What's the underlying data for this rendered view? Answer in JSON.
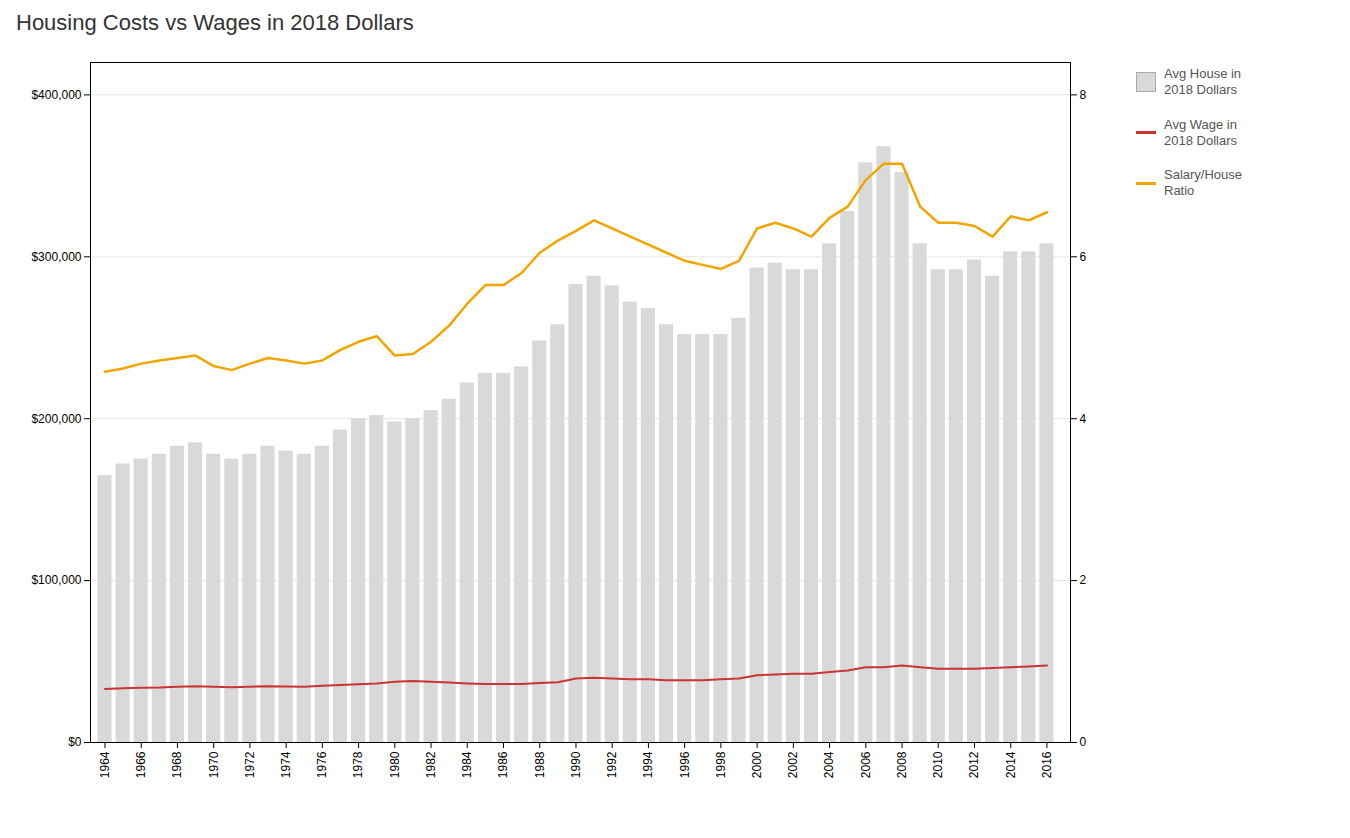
{
  "chart_data": {
    "type": "bar",
    "title": "Housing Costs vs Wages in 2018 Dollars",
    "x": [
      1964,
      1965,
      1966,
      1967,
      1968,
      1969,
      1970,
      1971,
      1972,
      1973,
      1974,
      1975,
      1976,
      1977,
      1978,
      1979,
      1980,
      1981,
      1982,
      1983,
      1984,
      1985,
      1986,
      1987,
      1988,
      1989,
      1990,
      1991,
      1992,
      1993,
      1994,
      1995,
      1996,
      1997,
      1998,
      1999,
      2000,
      2001,
      2002,
      2003,
      2004,
      2005,
      2006,
      2007,
      2008,
      2009,
      2010,
      2011,
      2012,
      2013,
      2014,
      2015,
      2016
    ],
    "series": [
      {
        "name": "Avg House in\n2018 Dollars",
        "type": "bar",
        "color": "#d9d9d9",
        "values": [
          165000,
          172000,
          175000,
          178000,
          183000,
          185000,
          178000,
          175000,
          178000,
          183000,
          180000,
          178000,
          183000,
          193000,
          200000,
          202000,
          198000,
          200000,
          205000,
          212000,
          222000,
          228000,
          228000,
          232000,
          248000,
          258000,
          283000,
          288000,
          282000,
          272000,
          268000,
          258000,
          252000,
          252000,
          252000,
          262000,
          293000,
          296000,
          292000,
          292000,
          308000,
          328000,
          358000,
          368000,
          352000,
          308000,
          292000,
          292000,
          298000,
          288000,
          303000,
          303000,
          308000
        ]
      },
      {
        "name": "Avg Wage in\n2018 Dollars",
        "type": "line",
        "color": "#cc3333",
        "values": [
          33000,
          33500,
          33800,
          34000,
          34500,
          34800,
          34500,
          34200,
          34500,
          34800,
          34600,
          34500,
          35000,
          35500,
          36000,
          36500,
          37500,
          38000,
          37500,
          37000,
          36500,
          36200,
          36200,
          36200,
          36800,
          37200,
          39500,
          40000,
          39500,
          39000,
          39000,
          38500,
          38500,
          38500,
          39000,
          39500,
          41500,
          42000,
          42500,
          42500,
          43500,
          44500,
          46500,
          46500,
          47500,
          46500,
          45500,
          45500,
          45500,
          46000,
          46500,
          47000,
          47500
        ]
      },
      {
        "name": "Salary/House\nRatio",
        "type": "line",
        "color": "#f0a500",
        "axis": "y2",
        "values": [
          4.58,
          4.62,
          4.68,
          4.72,
          4.75,
          4.78,
          4.65,
          4.6,
          4.68,
          4.75,
          4.72,
          4.68,
          4.72,
          4.85,
          4.95,
          5.02,
          4.78,
          4.8,
          4.95,
          5.15,
          5.42,
          5.65,
          5.65,
          5.8,
          6.05,
          6.2,
          6.32,
          6.45,
          6.35,
          6.25,
          6.15,
          6.05,
          5.95,
          5.9,
          5.85,
          5.95,
          6.35,
          6.42,
          6.35,
          6.25,
          6.48,
          6.62,
          6.95,
          7.15,
          7.15,
          6.62,
          6.42,
          6.42,
          6.38,
          6.25,
          6.5,
          6.45,
          6.55
        ]
      }
    ],
    "xlim": [
      1963.2,
      2017.3
    ],
    "xticks": [
      1964,
      1966,
      1968,
      1970,
      1972,
      1974,
      1976,
      1978,
      1980,
      1982,
      1984,
      1986,
      1988,
      1990,
      1992,
      1994,
      1996,
      1998,
      2000,
      2002,
      2004,
      2006,
      2008,
      2010,
      2012,
      2014,
      2016
    ],
    "ylim": [
      0,
      420000
    ],
    "yticks": [
      {
        "value": 0,
        "label": "$0"
      },
      {
        "value": 100000,
        "label": "$100,000"
      },
      {
        "value": 200000,
        "label": "$200,000"
      },
      {
        "value": 300000,
        "label": "$300,000"
      },
      {
        "value": 400000,
        "label": "$400,000"
      }
    ],
    "y2lim": [
      0,
      8.4
    ],
    "y2ticks": [
      0,
      2,
      4,
      6,
      8
    ],
    "grid": true,
    "legend": "upper right"
  }
}
